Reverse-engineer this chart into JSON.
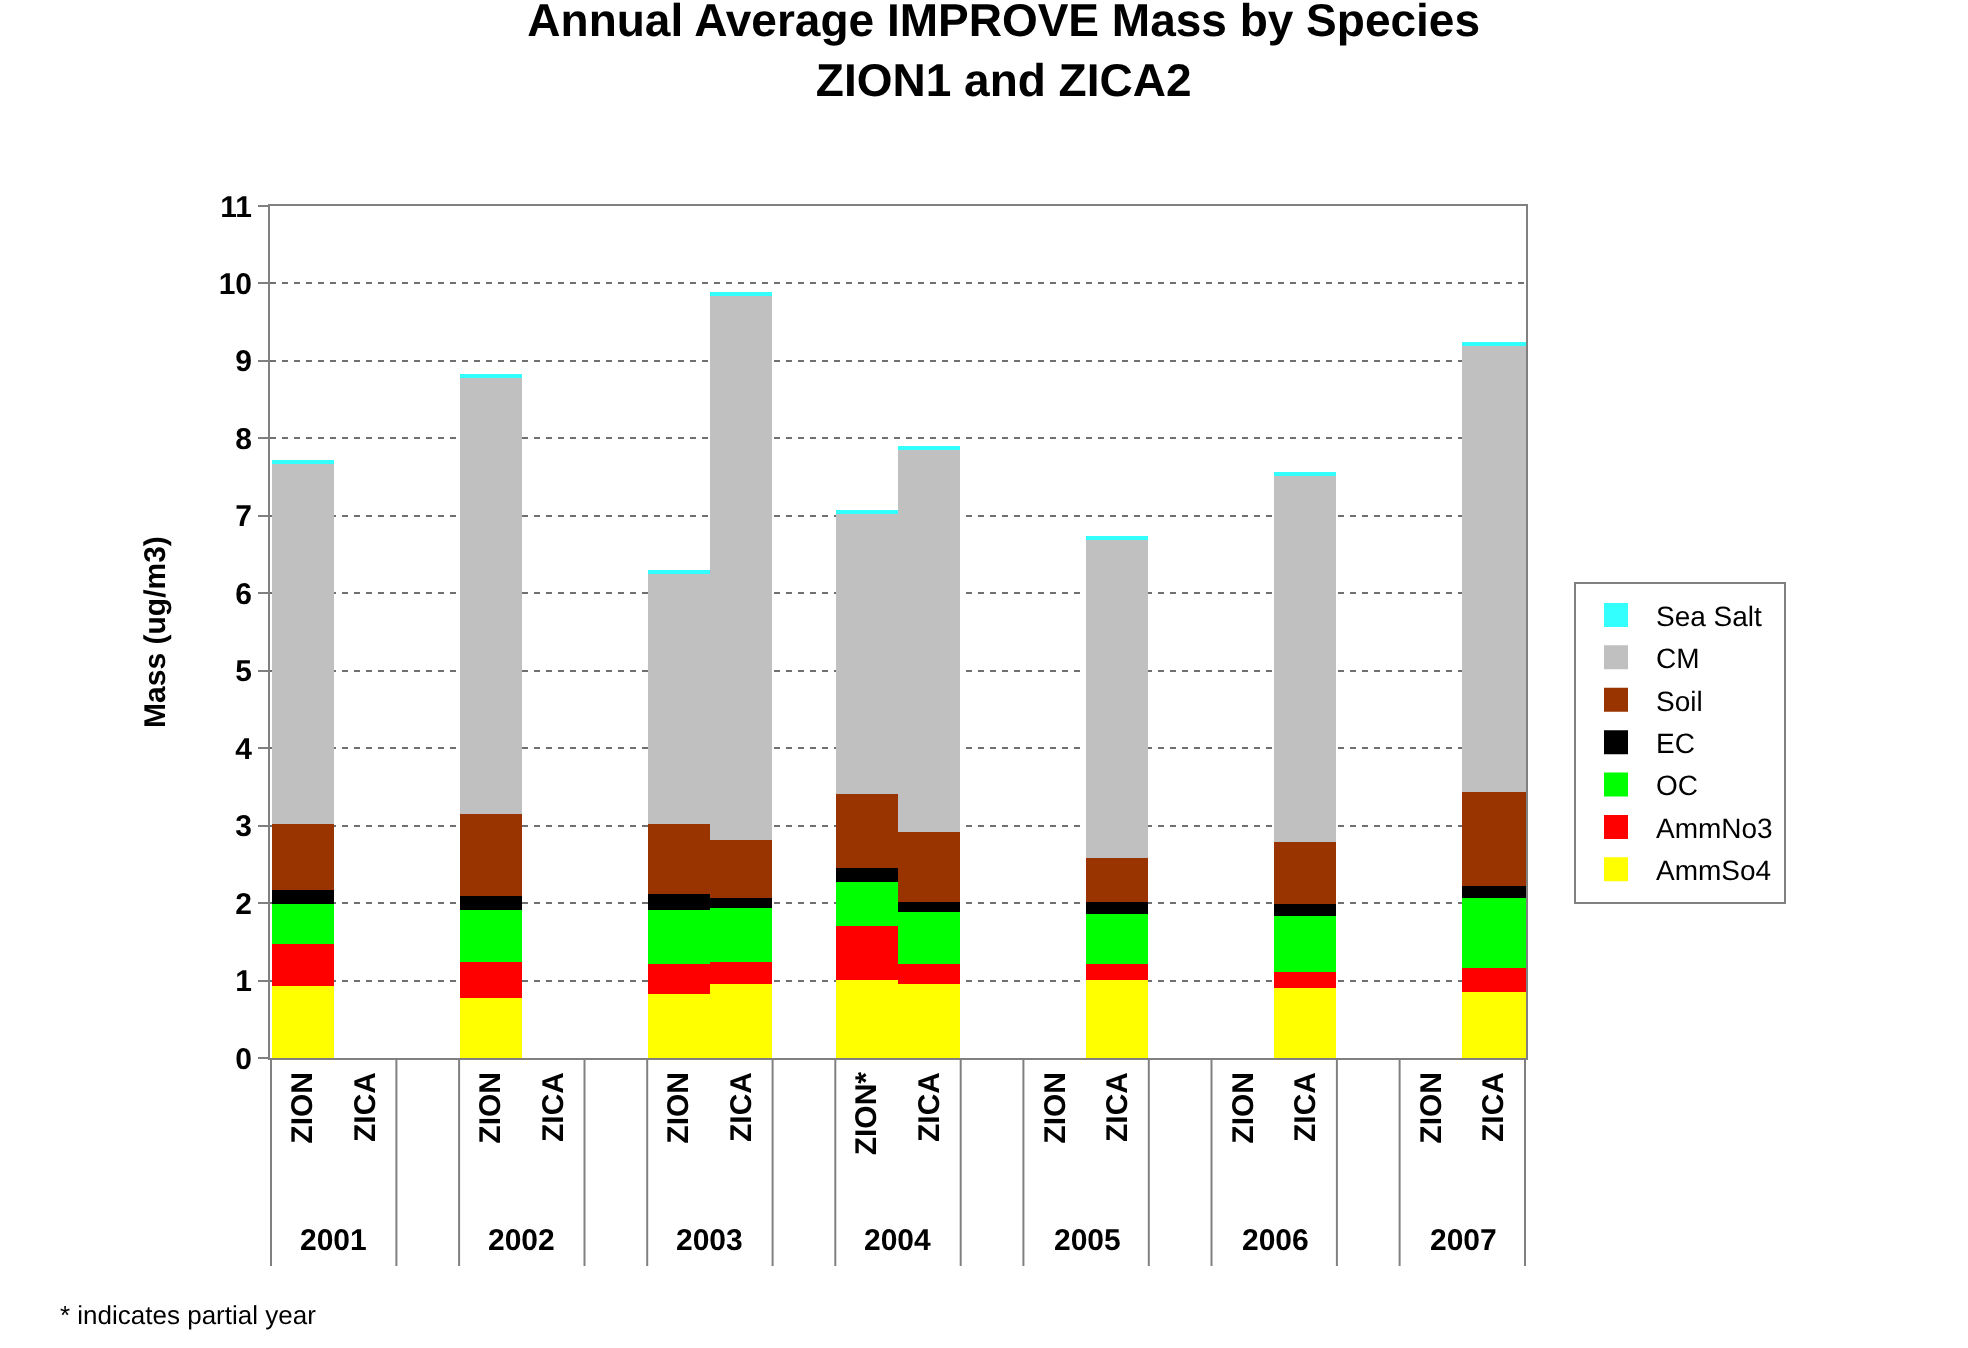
{
  "chart_data": {
    "type": "bar",
    "title": "Annual Average IMPROVE Mass by Species\nZION1 and ZICA2",
    "ylabel": "Mass (ug/m3)",
    "categories": [
      "ZION",
      "ZICA",
      null,
      "ZION",
      "ZICA",
      null,
      "ZION",
      "ZICA",
      null,
      "ZION*",
      "ZICA",
      null,
      "ZION",
      "ZICA",
      null,
      "ZION",
      "ZICA",
      null,
      "ZION",
      "ZICA"
    ],
    "series": [
      {
        "name": "AmmSo4",
        "color": "#ffff00",
        "values": [
          0.93,
          null,
          null,
          0.78,
          null,
          null,
          0.82,
          0.95,
          null,
          1.01,
          0.95,
          null,
          null,
          1.02,
          null,
          null,
          0.91,
          null,
          null,
          0.86
        ]
      },
      {
        "name": "AmmNo3",
        "color": "#ff0000",
        "values": [
          0.54,
          null,
          null,
          0.45,
          null,
          null,
          0.39,
          0.28,
          null,
          0.69,
          0.26,
          null,
          null,
          0.19,
          null,
          null,
          0.21,
          null,
          null,
          0.31
        ]
      },
      {
        "name": "OC",
        "color": "#00ff00",
        "values": [
          0.52,
          null,
          null,
          0.67,
          null,
          null,
          0.71,
          0.71,
          null,
          0.57,
          0.68,
          null,
          null,
          0.64,
          null,
          null,
          0.71,
          null,
          null,
          0.89
        ]
      },
      {
        "name": "EC",
        "color": "#000000",
        "values": [
          0.17,
          null,
          null,
          0.19,
          null,
          null,
          0.2,
          0.12,
          null,
          0.18,
          0.12,
          null,
          null,
          0.16,
          null,
          null,
          0.17,
          null,
          null,
          0.15
        ]
      },
      {
        "name": "Soil",
        "color": "#993300",
        "values": [
          0.87,
          null,
          null,
          1.05,
          null,
          null,
          0.89,
          0.76,
          null,
          0.97,
          0.9,
          null,
          null,
          0.58,
          null,
          null,
          0.79,
          null,
          null,
          1.23
        ]
      },
      {
        "name": "CM",
        "color": "#c0c0c0",
        "values": [
          4.64,
          null,
          null,
          5.64,
          null,
          null,
          3.25,
          7.04,
          null,
          3.62,
          4.95,
          null,
          null,
          4.12,
          null,
          null,
          4.74,
          null,
          null,
          5.77
        ]
      },
      {
        "name": "Sea Salt",
        "color": "#33ffff",
        "values": [
          0.03,
          null,
          null,
          0.03,
          null,
          null,
          0.03,
          0.03,
          null,
          0.03,
          0.03,
          null,
          null,
          0.03,
          null,
          null,
          0.03,
          null,
          null,
          0.03
        ]
      }
    ],
    "stacked": true,
    "ylim": [
      0,
      11
    ],
    "yticks": [
      0,
      1,
      2,
      3,
      4,
      5,
      6,
      7,
      8,
      9,
      10,
      11
    ],
    "grid": "y",
    "legend": "right",
    "annotations": [
      "2001",
      "2002",
      "2003",
      "2004",
      "2005",
      "2006",
      "2007",
      "* indicates partial year"
    ]
  }
}
